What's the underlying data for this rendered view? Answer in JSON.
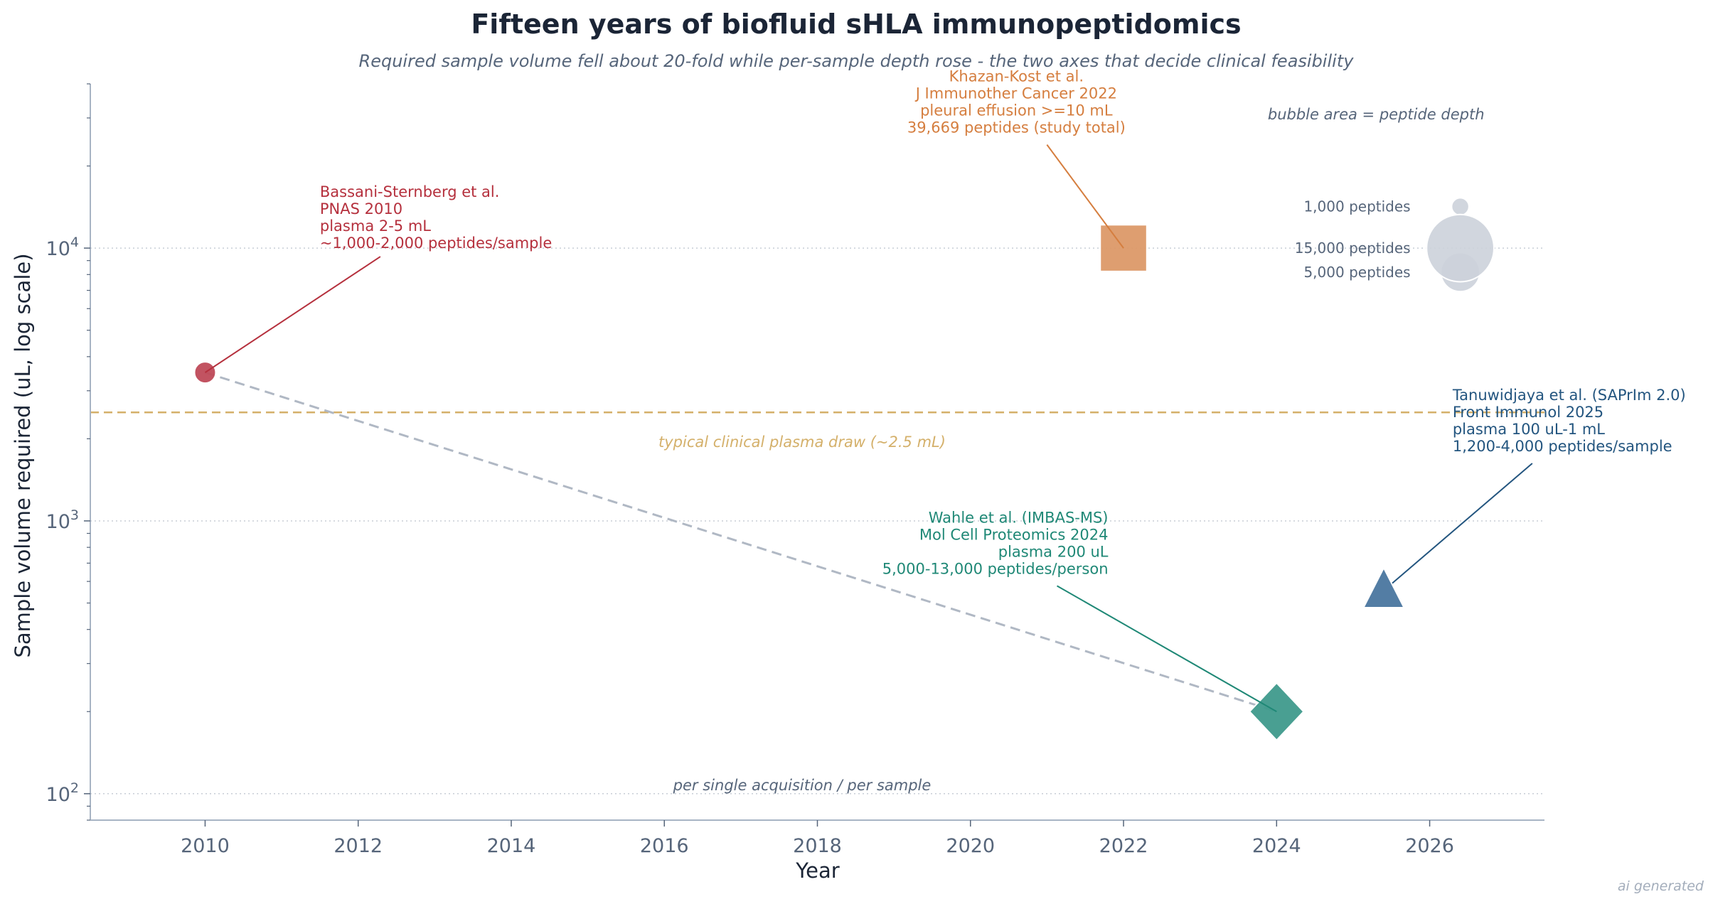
{
  "chart_data": {
    "type": "scatter",
    "title": "Fifteen years of biofluid sHLA immunopeptidomics",
    "subtitle": "Required sample volume fell about 20-fold while per-sample depth rose - the two axes that decide clinical feasibility",
    "xlabel": "Year",
    "ylabel": "Sample volume required (uL, log scale)",
    "xlim": [
      2008.5,
      2027.5
    ],
    "ylim": [
      80,
      40000
    ],
    "yscale": "log",
    "x_ticks": [
      2010,
      2012,
      2014,
      2016,
      2018,
      2020,
      2022,
      2024,
      2026
    ],
    "y_ticks": [
      {
        "value": 100,
        "base": "10",
        "exp": "2"
      },
      {
        "value": 1000,
        "base": "10",
        "exp": "3"
      },
      {
        "value": 10000,
        "base": "10",
        "exp": "4"
      }
    ],
    "grid": "horizontal dotted at major ticks",
    "points": [
      {
        "id": "bassani",
        "x": 2010,
        "y": 3500,
        "depth": 1500,
        "marker": "circle",
        "color": "#bf4a58",
        "label_color": "#b5303d",
        "annotation": [
          "Bassani-Sternberg et al.",
          "PNAS 2010",
          "plasma 2-5 mL",
          "~1,000-2,000 peptides/sample"
        ],
        "text_at": [
          2011.5,
          10000
        ],
        "align": "start"
      },
      {
        "id": "khazan",
        "x": 2022,
        "y": 10000,
        "depth": 39669,
        "marker": "square",
        "color": "#dc9968",
        "label_color": "#d57e3f",
        "annotation": [
          "Khazan-Kost et al.",
          "J Immunother Cancer 2022",
          "pleural effusion >=10 mL",
          "39,669 peptides (study total)"
        ],
        "text_at": [
          2020.6,
          26500
        ],
        "align": "middle"
      },
      {
        "id": "wahle",
        "x": 2024,
        "y": 200,
        "depth": 9000,
        "marker": "diamond",
        "color": "#3f9a8c",
        "label_color": "#1f8876",
        "annotation": [
          "Wahle et al. (IMBAS-MS)",
          "Mol Cell Proteomics 2024",
          "plasma 200 uL",
          "5,000-13,000 peptides/person"
        ],
        "text_at": [
          2021.8,
          640
        ],
        "align": "end"
      },
      {
        "id": "tanuwidjaya",
        "x": 2025.4,
        "y": 550,
        "depth": 2600,
        "marker": "triangle",
        "color": "#4a769f",
        "label_color": "#23557f",
        "annotation": [
          "Tanuwidjaya et al. (SAPrIm 2.0)",
          "Front Immunol 2025",
          "plasma 100 uL-1 mL",
          "1,200-4,000 peptides/sample"
        ],
        "text_at": [
          2026.3,
          1800
        ],
        "align": "start"
      }
    ],
    "trend_line": {
      "from": [
        2010,
        3500
      ],
      "to": [
        2024,
        200
      ],
      "style": "dashed",
      "color": "#b0b8c4"
    },
    "reference_line": {
      "y": 2500,
      "label": "typical clinical plasma draw (~2.5 mL)",
      "color": "#d4b06a",
      "style": "dashed"
    },
    "footnote": "per single acquisition / per sample",
    "size_legend": {
      "title": "bubble area = peptide depth",
      "position": "top-right",
      "entries": [
        {
          "label": "1,000 peptides",
          "depth": 1000
        },
        {
          "label": "5,000 peptides",
          "depth": 5000
        },
        {
          "label": "15,000 peptides",
          "depth": 15000
        }
      ]
    },
    "watermark": "ai generated"
  },
  "colors": {
    "text_dark": "#1b2536",
    "text_muted": "#56657a",
    "axis": "#a8b4c4",
    "grid": "#c8ced6",
    "legend_bubble": "#ccd2da"
  }
}
